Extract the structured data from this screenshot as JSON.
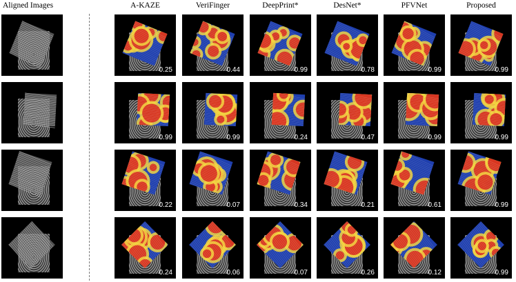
{
  "columns": [
    "Aligned Images",
    "A-KAZE",
    "VeriFinger",
    "DeepPrint*",
    "DesNet*",
    "PFVNet",
    "Proposed"
  ],
  "rows": [
    {
      "scores": [
        "0.25",
        "0.44",
        "0.99",
        "0.78",
        "0.99",
        "0.99"
      ]
    },
    {
      "scores": [
        "0.99",
        "0.99",
        "0.24",
        "0.47",
        "0.99",
        "0.99"
      ]
    },
    {
      "scores": [
        "0.22",
        "0.07",
        "0.34",
        "0.21",
        "0.61",
        "0.99"
      ]
    },
    {
      "scores": [
        "0.24",
        "0.06",
        "0.07",
        "0.26",
        "0.12",
        "0.99"
      ]
    }
  ],
  "colors": {
    "background": "#000000",
    "heat_high": "#d6281e",
    "heat_mid": "#f2d23a",
    "heat_low": "#1f3fae",
    "divider": "#7a7a7a"
  }
}
